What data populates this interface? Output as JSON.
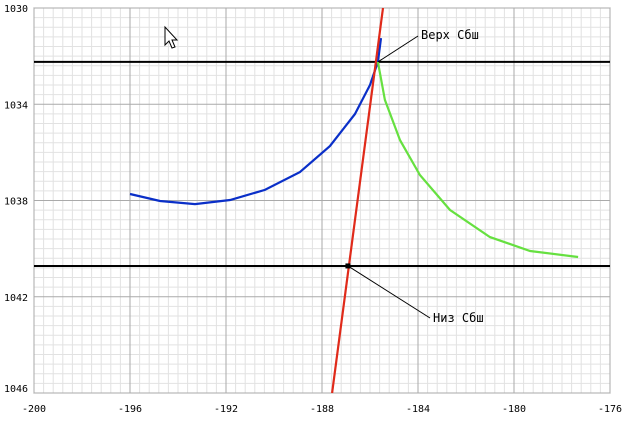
{
  "chart_data": {
    "type": "line",
    "xlim": [
      -200,
      -176
    ],
    "ylim": [
      1046,
      1030
    ],
    "xticks": [
      -200,
      -196,
      -192,
      -188,
      -184,
      -180,
      -176
    ],
    "yticks": [
      1030,
      1034,
      1038,
      1042,
      1046
    ],
    "grid": true,
    "series": [
      {
        "color": "#0a2fc8",
        "x": [
          -196.0,
          -194.75,
          -193.29,
          -191.83,
          -190.38,
          -188.92,
          -187.67,
          -186.63,
          -186.0,
          -185.67,
          -185.54
        ],
        "values": [
          1037.73,
          1038.02,
          1038.15,
          1037.98,
          1037.56,
          1036.82,
          1035.74,
          1034.41,
          1033.2,
          1032.24,
          1031.25
        ]
      },
      {
        "color": "#66e040",
        "x": [
          -185.67,
          -185.38,
          -184.75,
          -183.92,
          -182.67,
          -181.0,
          -179.33,
          -177.33
        ],
        "values": [
          1032.24,
          1033.82,
          1035.49,
          1036.94,
          1038.39,
          1039.52,
          1040.1,
          1040.35
        ]
      },
      {
        "color": "#e02a1a",
        "x": [
          -187.58,
          -185.46
        ],
        "values": [
          1046,
          1030
        ]
      }
    ],
    "hlines": [
      1032.24,
      1040.72
    ],
    "point": {
      "x": -186.92,
      "y": 1040.72
    },
    "annotations": [
      {
        "text": "Верх Сбш",
        "x": -185.67,
        "y": 1032.24
      },
      {
        "text": "Низ Сбш",
        "x": -186.92,
        "y": 1040.72
      }
    ]
  }
}
